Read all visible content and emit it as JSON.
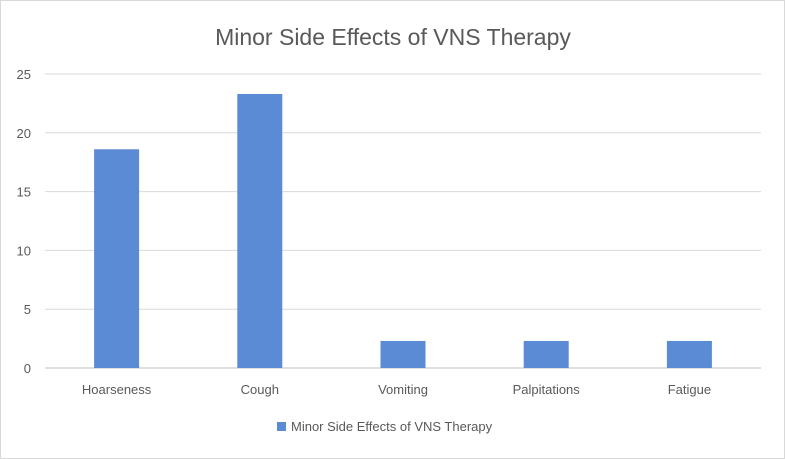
{
  "chart_data": {
    "type": "bar",
    "title": "Minor Side Effects of VNS Therapy",
    "categories": [
      "Hoarseness",
      "Cough",
      "Vomiting",
      "Palpitations",
      "Fatigue"
    ],
    "series": [
      {
        "name": "Minor Side Effects of VNS Therapy",
        "values": [
          18.6,
          23.3,
          2.3,
          2.3,
          2.3
        ],
        "color": "#5b8bd4"
      }
    ],
    "ylim": [
      0,
      25
    ],
    "yticks": [
      0,
      5,
      10,
      15,
      20,
      25
    ],
    "xlabel": "",
    "ylabel": "",
    "grid": true,
    "legend": "bottom-center"
  }
}
